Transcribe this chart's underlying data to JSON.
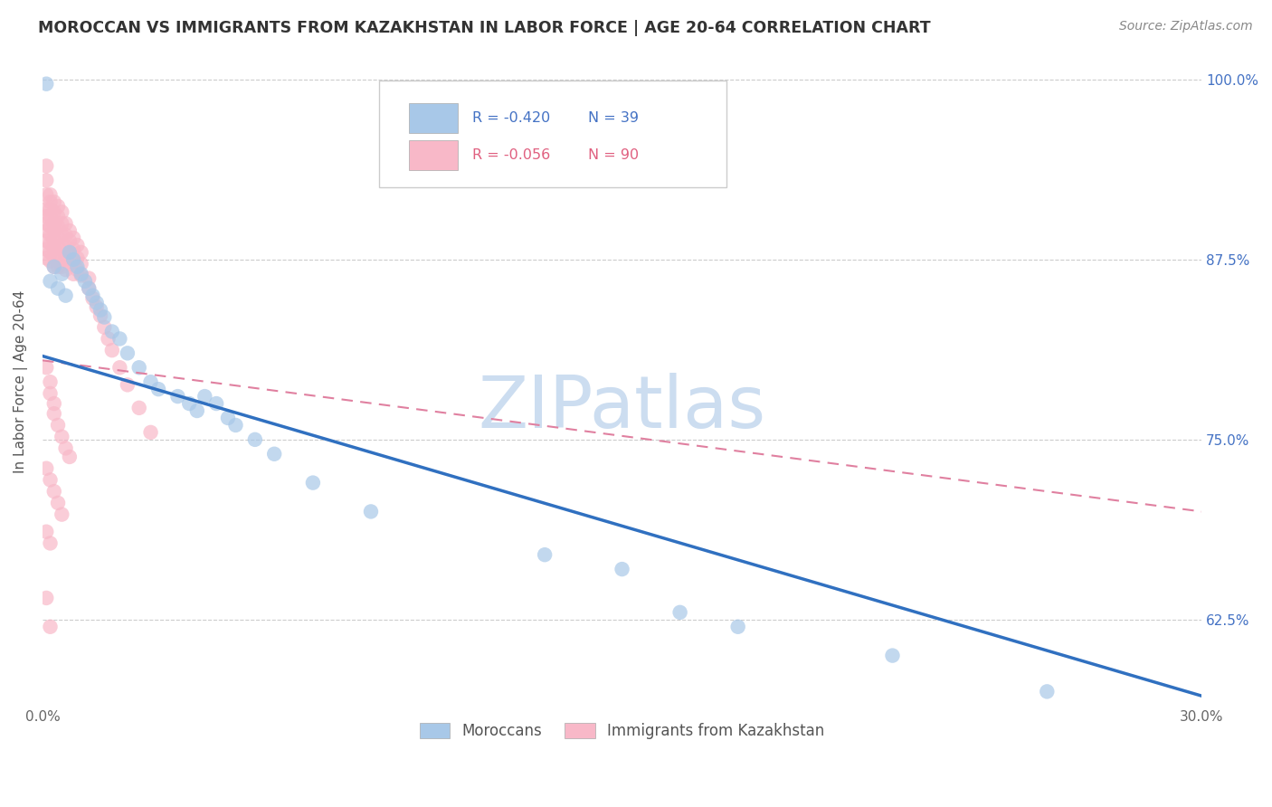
{
  "title": "MOROCCAN VS IMMIGRANTS FROM KAZAKHSTAN IN LABOR FORCE | AGE 20-64 CORRELATION CHART",
  "source": "Source: ZipAtlas.com",
  "ylabel": "In Labor Force | Age 20-64",
  "xlim": [
    0.0,
    0.3
  ],
  "ylim": [
    0.565,
    1.015
  ],
  "xticks": [
    0.0,
    0.05,
    0.1,
    0.15,
    0.2,
    0.25,
    0.3
  ],
  "xticklabels": [
    "0.0%",
    "",
    "",
    "",
    "",
    "",
    "30.0%"
  ],
  "yticks": [
    0.625,
    0.75,
    0.875,
    1.0
  ],
  "yticklabels": [
    "62.5%",
    "75.0%",
    "87.5%",
    "100.0%"
  ],
  "blue_R": -0.42,
  "blue_N": 39,
  "pink_R": -0.056,
  "pink_N": 90,
  "blue_color": "#a8c8e8",
  "pink_color": "#f8b8c8",
  "blue_edge_color": "#7badd4",
  "pink_edge_color": "#f090b0",
  "blue_line_color": "#3070c0",
  "pink_line_color": "#e080a0",
  "watermark": "ZIPatlas",
  "watermark_color": "#ccddf0",
  "legend_label_blue": "Moroccans",
  "legend_label_pink": "Immigrants from Kazakhstan",
  "blue_scatter_x": [
    0.001,
    0.002,
    0.003,
    0.004,
    0.005,
    0.006,
    0.007,
    0.008,
    0.009,
    0.01,
    0.011,
    0.012,
    0.013,
    0.014,
    0.015,
    0.016,
    0.018,
    0.02,
    0.022,
    0.025,
    0.028,
    0.03,
    0.035,
    0.038,
    0.04,
    0.042,
    0.045,
    0.048,
    0.05,
    0.055,
    0.06,
    0.07,
    0.085,
    0.13,
    0.15,
    0.165,
    0.18,
    0.22,
    0.26
  ],
  "blue_scatter_y": [
    0.997,
    0.86,
    0.87,
    0.855,
    0.865,
    0.85,
    0.88,
    0.875,
    0.87,
    0.865,
    0.86,
    0.855,
    0.85,
    0.845,
    0.84,
    0.835,
    0.825,
    0.82,
    0.81,
    0.8,
    0.79,
    0.785,
    0.78,
    0.775,
    0.77,
    0.78,
    0.775,
    0.765,
    0.76,
    0.75,
    0.74,
    0.72,
    0.7,
    0.67,
    0.66,
    0.63,
    0.62,
    0.6,
    0.575
  ],
  "pink_scatter_x": [
    0.001,
    0.001,
    0.001,
    0.001,
    0.001,
    0.001,
    0.001,
    0.001,
    0.001,
    0.001,
    0.002,
    0.002,
    0.002,
    0.002,
    0.002,
    0.002,
    0.002,
    0.002,
    0.002,
    0.003,
    0.003,
    0.003,
    0.003,
    0.003,
    0.003,
    0.003,
    0.003,
    0.004,
    0.004,
    0.004,
    0.004,
    0.004,
    0.004,
    0.004,
    0.005,
    0.005,
    0.005,
    0.005,
    0.005,
    0.005,
    0.006,
    0.006,
    0.006,
    0.006,
    0.006,
    0.007,
    0.007,
    0.007,
    0.007,
    0.008,
    0.008,
    0.008,
    0.008,
    0.009,
    0.009,
    0.009,
    0.01,
    0.01,
    0.01,
    0.012,
    0.012,
    0.013,
    0.014,
    0.015,
    0.016,
    0.017,
    0.018,
    0.02,
    0.022,
    0.025,
    0.028,
    0.001,
    0.002,
    0.002,
    0.003,
    0.003,
    0.004,
    0.005,
    0.006,
    0.007,
    0.001,
    0.002,
    0.003,
    0.004,
    0.005,
    0.001,
    0.002,
    0.001,
    0.002
  ],
  "pink_scatter_y": [
    0.94,
    0.93,
    0.92,
    0.91,
    0.905,
    0.9,
    0.895,
    0.888,
    0.882,
    0.876,
    0.92,
    0.915,
    0.91,
    0.905,
    0.898,
    0.892,
    0.886,
    0.88,
    0.874,
    0.915,
    0.908,
    0.9,
    0.895,
    0.888,
    0.882,
    0.876,
    0.87,
    0.912,
    0.905,
    0.898,
    0.89,
    0.884,
    0.878,
    0.87,
    0.908,
    0.9,
    0.892,
    0.885,
    0.878,
    0.87,
    0.9,
    0.892,
    0.884,
    0.876,
    0.868,
    0.895,
    0.888,
    0.88,
    0.872,
    0.89,
    0.882,
    0.874,
    0.865,
    0.885,
    0.876,
    0.868,
    0.88,
    0.872,
    0.864,
    0.862,
    0.855,
    0.848,
    0.842,
    0.836,
    0.828,
    0.82,
    0.812,
    0.8,
    0.788,
    0.772,
    0.755,
    0.8,
    0.79,
    0.782,
    0.775,
    0.768,
    0.76,
    0.752,
    0.744,
    0.738,
    0.73,
    0.722,
    0.714,
    0.706,
    0.698,
    0.686,
    0.678,
    0.64,
    0.62
  ],
  "blue_trendline_x": [
    0.0,
    0.3
  ],
  "blue_trendline_y": [
    0.808,
    0.572
  ],
  "pink_trendline_x": [
    0.0,
    0.3
  ],
  "pink_trendline_y": [
    0.805,
    0.7
  ]
}
